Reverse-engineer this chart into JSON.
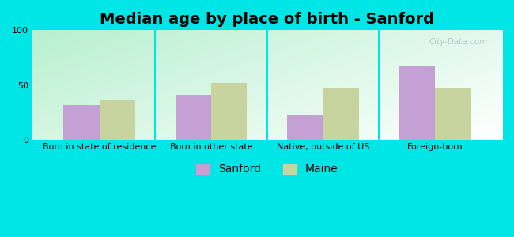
{
  "title": "Median age by place of birth - Sanford",
  "categories": [
    "Born in state of residence",
    "Born in other state",
    "Native, outside of US",
    "Foreign-born"
  ],
  "sanford_values": [
    32,
    41,
    22,
    68
  ],
  "maine_values": [
    37,
    52,
    47,
    47
  ],
  "sanford_color": "#c4a0d4",
  "maine_color": "#c8d4a0",
  "background_color": "#00e5e5",
  "plot_bg_color_topleft": "#b8f0d0",
  "plot_bg_color_white": "#ffffff",
  "ylim": [
    0,
    100
  ],
  "yticks": [
    0,
    50,
    100
  ],
  "legend_labels": [
    "Sanford",
    "Maine"
  ],
  "bar_width": 0.32,
  "title_fontsize": 14,
  "tick_fontsize": 8,
  "legend_fontsize": 10,
  "watermark": "City-Data.com"
}
